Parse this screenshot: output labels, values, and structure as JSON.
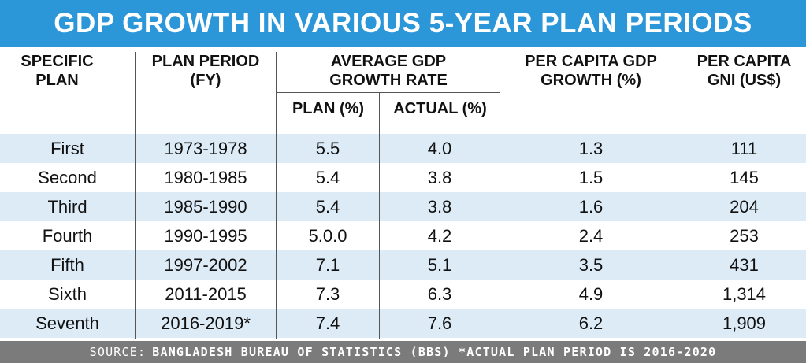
{
  "title": "GDP GROWTH IN VARIOUS 5-YEAR PLAN PERIODS",
  "headers": {
    "plan": [
      "SPECIFIC",
      "PLAN"
    ],
    "period": [
      "PLAN PERIOD",
      "(FY)"
    ],
    "avg_gdp": [
      "AVERAGE GDP",
      "GROWTH RATE"
    ],
    "plan_pct": "PLAN (%)",
    "actual_pct": "ACTUAL (%)",
    "per_capita_gdp": [
      "PER CAPITA GDP",
      "GROWTH (%)"
    ],
    "per_capita_gni": [
      "PER CAPITA",
      "GNI (US$)"
    ]
  },
  "rows": [
    {
      "plan": "First",
      "period": "1973-1978",
      "plan_pct": "5.5",
      "actual_pct": "4.0",
      "pc_gdp": "1.3",
      "pc_gni": "111"
    },
    {
      "plan": "Second",
      "period": "1980-1985",
      "plan_pct": "5.4",
      "actual_pct": "3.8",
      "pc_gdp": "1.5",
      "pc_gni": "145"
    },
    {
      "plan": "Third",
      "period": "1985-1990",
      "plan_pct": "5.4",
      "actual_pct": "3.8",
      "pc_gdp": "1.6",
      "pc_gni": "204"
    },
    {
      "plan": "Fourth",
      "period": "1990-1995",
      "plan_pct": "5.0.0",
      "actual_pct": "4.2",
      "pc_gdp": "2.4",
      "pc_gni": "253"
    },
    {
      "plan": "Fifth",
      "period": "1997-2002",
      "plan_pct": "7.1",
      "actual_pct": "5.1",
      "pc_gdp": "3.5",
      "pc_gni": "431"
    },
    {
      "plan": "Sixth",
      "period": "2011-2015",
      "plan_pct": "7.3",
      "actual_pct": "6.3",
      "pc_gdp": "4.9",
      "pc_gni": "1,314"
    },
    {
      "plan": "Seventh",
      "period": "2016-2019*",
      "plan_pct": "7.4",
      "actual_pct": "7.6",
      "pc_gdp": "6.2",
      "pc_gni": "1,909"
    }
  ],
  "source": {
    "lead": "SOURCE:",
    "rest": "BANGLADESH BUREAU OF STATISTICS (BBS) *ACTUAL PLAN PERIOD IS 2016-2020"
  },
  "colors": {
    "title_bg": "#2b96d8",
    "row_shade": "#dcebf6",
    "source_bg": "#7b7b7b"
  },
  "chart_data": {
    "type": "table",
    "title": "GDP GROWTH IN VARIOUS 5-YEAR PLAN PERIODS",
    "columns": [
      "SPECIFIC PLAN",
      "PLAN PERIOD (FY)",
      "PLAN (%)",
      "ACTUAL (%)",
      "PER CAPITA GDP GROWTH (%)",
      "PER CAPITA GNI (US$)"
    ],
    "rows": [
      [
        "First",
        "1973-1978",
        "5.5",
        "4.0",
        "1.3",
        "111"
      ],
      [
        "Second",
        "1980-1985",
        "5.4",
        "3.8",
        "1.5",
        "145"
      ],
      [
        "Third",
        "1985-1990",
        "5.4",
        "3.8",
        "1.6",
        "204"
      ],
      [
        "Fourth",
        "1990-1995",
        "5.0.0",
        "4.2",
        "2.4",
        "253"
      ],
      [
        "Fifth",
        "1997-2002",
        "7.1",
        "5.1",
        "3.5",
        "431"
      ],
      [
        "Sixth",
        "2011-2015",
        "7.3",
        "6.3",
        "4.9",
        "1,314"
      ],
      [
        "Seventh",
        "2016-2019*",
        "7.4",
        "7.6",
        "6.2",
        "1,909"
      ]
    ]
  }
}
